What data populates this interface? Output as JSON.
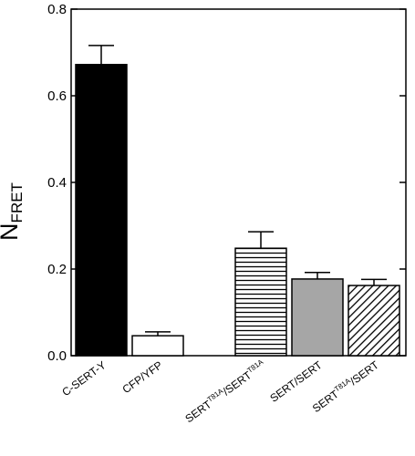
{
  "chart_data": {
    "type": "bar",
    "title": "",
    "xlabel": "",
    "ylabel": {
      "main": "N",
      "sub": "FRET"
    },
    "ylim": [
      0,
      0.8
    ],
    "yticks": [
      "0.0",
      "0.2",
      "0.4",
      "0.6",
      "0.8"
    ],
    "grid": false,
    "categories": [
      {
        "parts": [
          {
            "text": "C-SERT-Y"
          }
        ],
        "fill": "solid-black"
      },
      {
        "parts": [
          {
            "text": "CFP/YFP"
          }
        ],
        "fill": "white"
      },
      {
        "parts": [
          {
            "text": "SERT"
          },
          {
            "text": "T81A",
            "sup": true
          },
          {
            "text": "/SERT"
          },
          {
            "text": "T81A",
            "sup": true
          }
        ],
        "fill": "horizontal-stripes"
      },
      {
        "parts": [
          {
            "text": "SERT/SERT"
          }
        ],
        "fill": "grey"
      },
      {
        "parts": [
          {
            "text": "SERT"
          },
          {
            "text": "T81A",
            "sup": true
          },
          {
            "text": "/SERT"
          }
        ],
        "fill": "diagonal-hatch"
      }
    ],
    "values": [
      0.672,
      0.046,
      0.248,
      0.177,
      0.162
    ],
    "errors": [
      0.044,
      0.009,
      0.038,
      0.015,
      0.014
    ],
    "colors": {
      "axis": "#000000",
      "solid": "#000000",
      "grey": "#a6a6a6",
      "white": "#ffffff"
    }
  }
}
